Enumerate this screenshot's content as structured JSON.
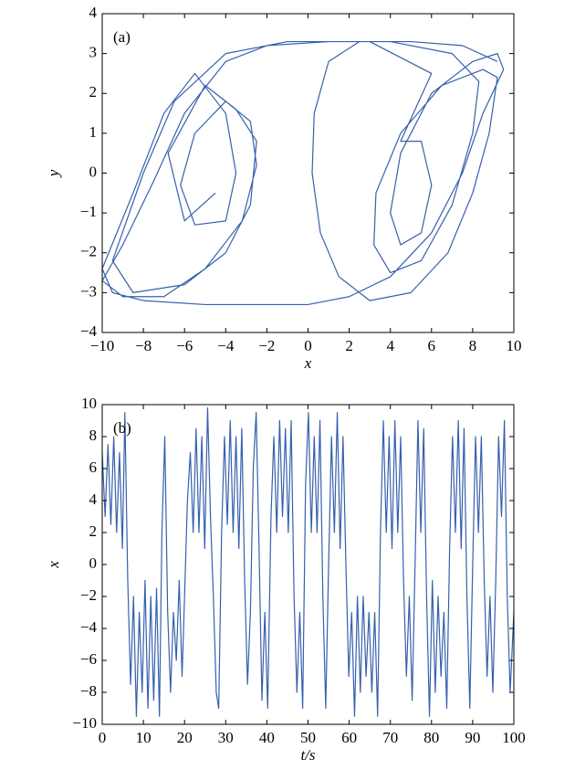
{
  "chart_data": [
    {
      "type": "line",
      "annotation": "(a)",
      "xlabel": "x",
      "ylabel": "y",
      "color": "#3560ad",
      "xlim": [
        -10,
        10
      ],
      "ylim": [
        -4,
        4
      ],
      "xticks": [
        -10,
        -8,
        -6,
        -4,
        -2,
        0,
        2,
        4,
        6,
        8,
        10
      ],
      "yticks": [
        -4,
        -3,
        -2,
        -1,
        0,
        1,
        2,
        3,
        4
      ],
      "x": [
        9.2,
        7.5,
        5,
        2.5,
        1,
        0.3,
        0.2,
        0.6,
        1.5,
        3,
        5,
        6.8,
        8,
        8.8,
        9.2,
        8.5,
        6.5,
        4.5,
        3.3,
        3.2,
        4,
        5.5,
        7,
        8,
        8.3,
        7,
        4,
        1,
        -2,
        -4,
        -6,
        -7.5,
        -9,
        -10,
        -9,
        -7,
        -5,
        -3.2,
        -2.5,
        -2.8,
        -4,
        -5.5,
        -6.2,
        -5.5,
        -4,
        -3.5,
        -4,
        -5.5,
        -7,
        -8.5,
        -10,
        -9.5,
        -8,
        -5,
        -2,
        0,
        2,
        4,
        6,
        7.5,
        8.5,
        9.5,
        9.2,
        8,
        6,
        4.5,
        4,
        4.5,
        5.5,
        6,
        5.5,
        4.5,
        6,
        3,
        -1,
        -4,
        -6.5,
        -8,
        -9.5,
        -8.5,
        -6,
        -4,
        -2.8,
        -2.5,
        -3.5,
        -5,
        -6.8,
        -6,
        -4.5
      ],
      "values": [
        2.8,
        3.2,
        3.3,
        3.3,
        2.8,
        1.5,
        0,
        -1.5,
        -2.6,
        -3.2,
        -3,
        -2,
        -0.5,
        1,
        2.4,
        2.6,
        2.2,
        1,
        -0.5,
        -1.8,
        -2.5,
        -2.2,
        -0.8,
        1,
        2.3,
        3,
        3.3,
        3.3,
        3.2,
        2.8,
        1.5,
        -0.2,
        -1.8,
        -2.7,
        -3.1,
        -3.1,
        -2.4,
        -1.2,
        0.2,
        1.3,
        1.8,
        1,
        -0.3,
        -1.3,
        -1.2,
        0,
        1.5,
        2.5,
        1.5,
        -0.5,
        -2.4,
        -3,
        -3.2,
        -3.3,
        -3.3,
        -3.3,
        -3.1,
        -2.6,
        -1.5,
        0,
        1.5,
        2.6,
        3,
        2.8,
        2,
        0.5,
        -1,
        -1.8,
        -1.5,
        -0.3,
        0.8,
        0.8,
        2.5,
        3.3,
        3.3,
        3,
        1.8,
        0,
        -2.2,
        -3,
        -2.8,
        -2,
        -0.8,
        0.8,
        1.6,
        2.2,
        0.5,
        -1.2,
        -0.5
      ]
    },
    {
      "type": "line",
      "annotation": "(b)",
      "xlabel": "t/s",
      "ylabel": "x",
      "color": "#3560ad",
      "xlim": [
        0,
        100
      ],
      "ylim": [
        -10,
        10
      ],
      "xticks": [
        0,
        10,
        20,
        30,
        40,
        50,
        60,
        70,
        80,
        90,
        100
      ],
      "yticks": [
        -10,
        -8,
        -6,
        -4,
        -2,
        0,
        2,
        4,
        6,
        8,
        10
      ],
      "x": [
        0,
        0.7,
        1.4,
        2.1,
        2.8,
        3.5,
        4.2,
        4.9,
        5.5,
        6.2,
        6.9,
        7.6,
        8.3,
        9,
        9.7,
        10.4,
        11.1,
        11.8,
        12.5,
        13.2,
        13.9,
        14.5,
        15.2,
        15.9,
        16.6,
        17.3,
        18,
        18.7,
        19.4,
        20,
        20.7,
        21.4,
        22.1,
        22.8,
        23.5,
        24.2,
        24.9,
        25.6,
        26.3,
        27,
        27.7,
        28.3,
        29,
        29.7,
        30.4,
        31.1,
        31.8,
        32.5,
        33.2,
        33.9,
        34.6,
        35.3,
        36,
        36.7,
        37.4,
        38.1,
        38.8,
        39.5,
        40.2,
        41,
        41.7,
        42.4,
        43.1,
        43.8,
        44.5,
        45.2,
        45.9,
        46.6,
        47.3,
        48,
        48.7,
        49.4,
        50.1,
        50.8,
        51.5,
        52.2,
        52.9,
        53.6,
        54.3,
        55,
        55.7,
        56.4,
        57.1,
        57.8,
        58.5,
        59.2,
        59.9,
        60.6,
        61.3,
        62,
        62.7,
        63.4,
        64.1,
        64.8,
        65.5,
        66.2,
        66.9,
        67.6,
        68.3,
        69,
        69.7,
        70.4,
        71.1,
        71.8,
        72.5,
        73.2,
        73.9,
        74.6,
        75.3,
        76,
        76.7,
        77.4,
        78.1,
        78.8,
        79.5,
        80.2,
        80.9,
        81.6,
        82.3,
        83,
        83.7,
        84.4,
        85.1,
        85.8,
        86.5,
        87.2,
        87.9,
        88.6,
        89.3,
        90,
        90.7,
        91.4,
        92.1,
        92.8,
        93.5,
        94.2,
        94.9,
        95.6,
        96.3,
        97,
        97.7,
        98.4,
        99.1,
        100
      ],
      "values": [
        7,
        3,
        7.5,
        2.5,
        8,
        2,
        7,
        1,
        9.5,
        -1,
        -7.5,
        -2,
        -9.5,
        -3,
        -8,
        -1,
        -9,
        -2,
        -8.5,
        -1.5,
        -9.5,
        2,
        8,
        -3,
        -8,
        -3,
        -6,
        -1,
        -7,
        -2,
        4,
        7,
        2,
        8.5,
        2,
        8,
        1,
        9.8,
        3,
        -2,
        -8,
        -9,
        2,
        8,
        2.5,
        9,
        2,
        8,
        1,
        8.5,
        -1,
        -7.5,
        -3,
        6,
        9.5,
        1,
        -8.5,
        -3,
        -9,
        3,
        8,
        2,
        9,
        3,
        8.5,
        2,
        9,
        -2,
        -8,
        -3,
        -9,
        5,
        9.5,
        2,
        8,
        2,
        9,
        -2,
        -9,
        0,
        8,
        2,
        9.5,
        1,
        8,
        0,
        -7,
        -3,
        -9.5,
        -2,
        -8,
        -2,
        -7,
        -3,
        -8,
        -3,
        -9.5,
        2,
        9,
        2,
        8,
        1,
        9,
        2,
        8,
        -1,
        -7,
        -2,
        -8.5,
        0,
        9,
        2,
        8.5,
        -2,
        -9.5,
        -1,
        -8,
        -2,
        -7,
        -3,
        -9,
        1,
        8,
        2,
        9,
        1,
        8.5,
        -2,
        -9,
        0,
        8,
        2,
        8,
        -1,
        -7,
        -2,
        -8,
        -1,
        8,
        3,
        9,
        -2,
        -8,
        -3
      ]
    }
  ]
}
